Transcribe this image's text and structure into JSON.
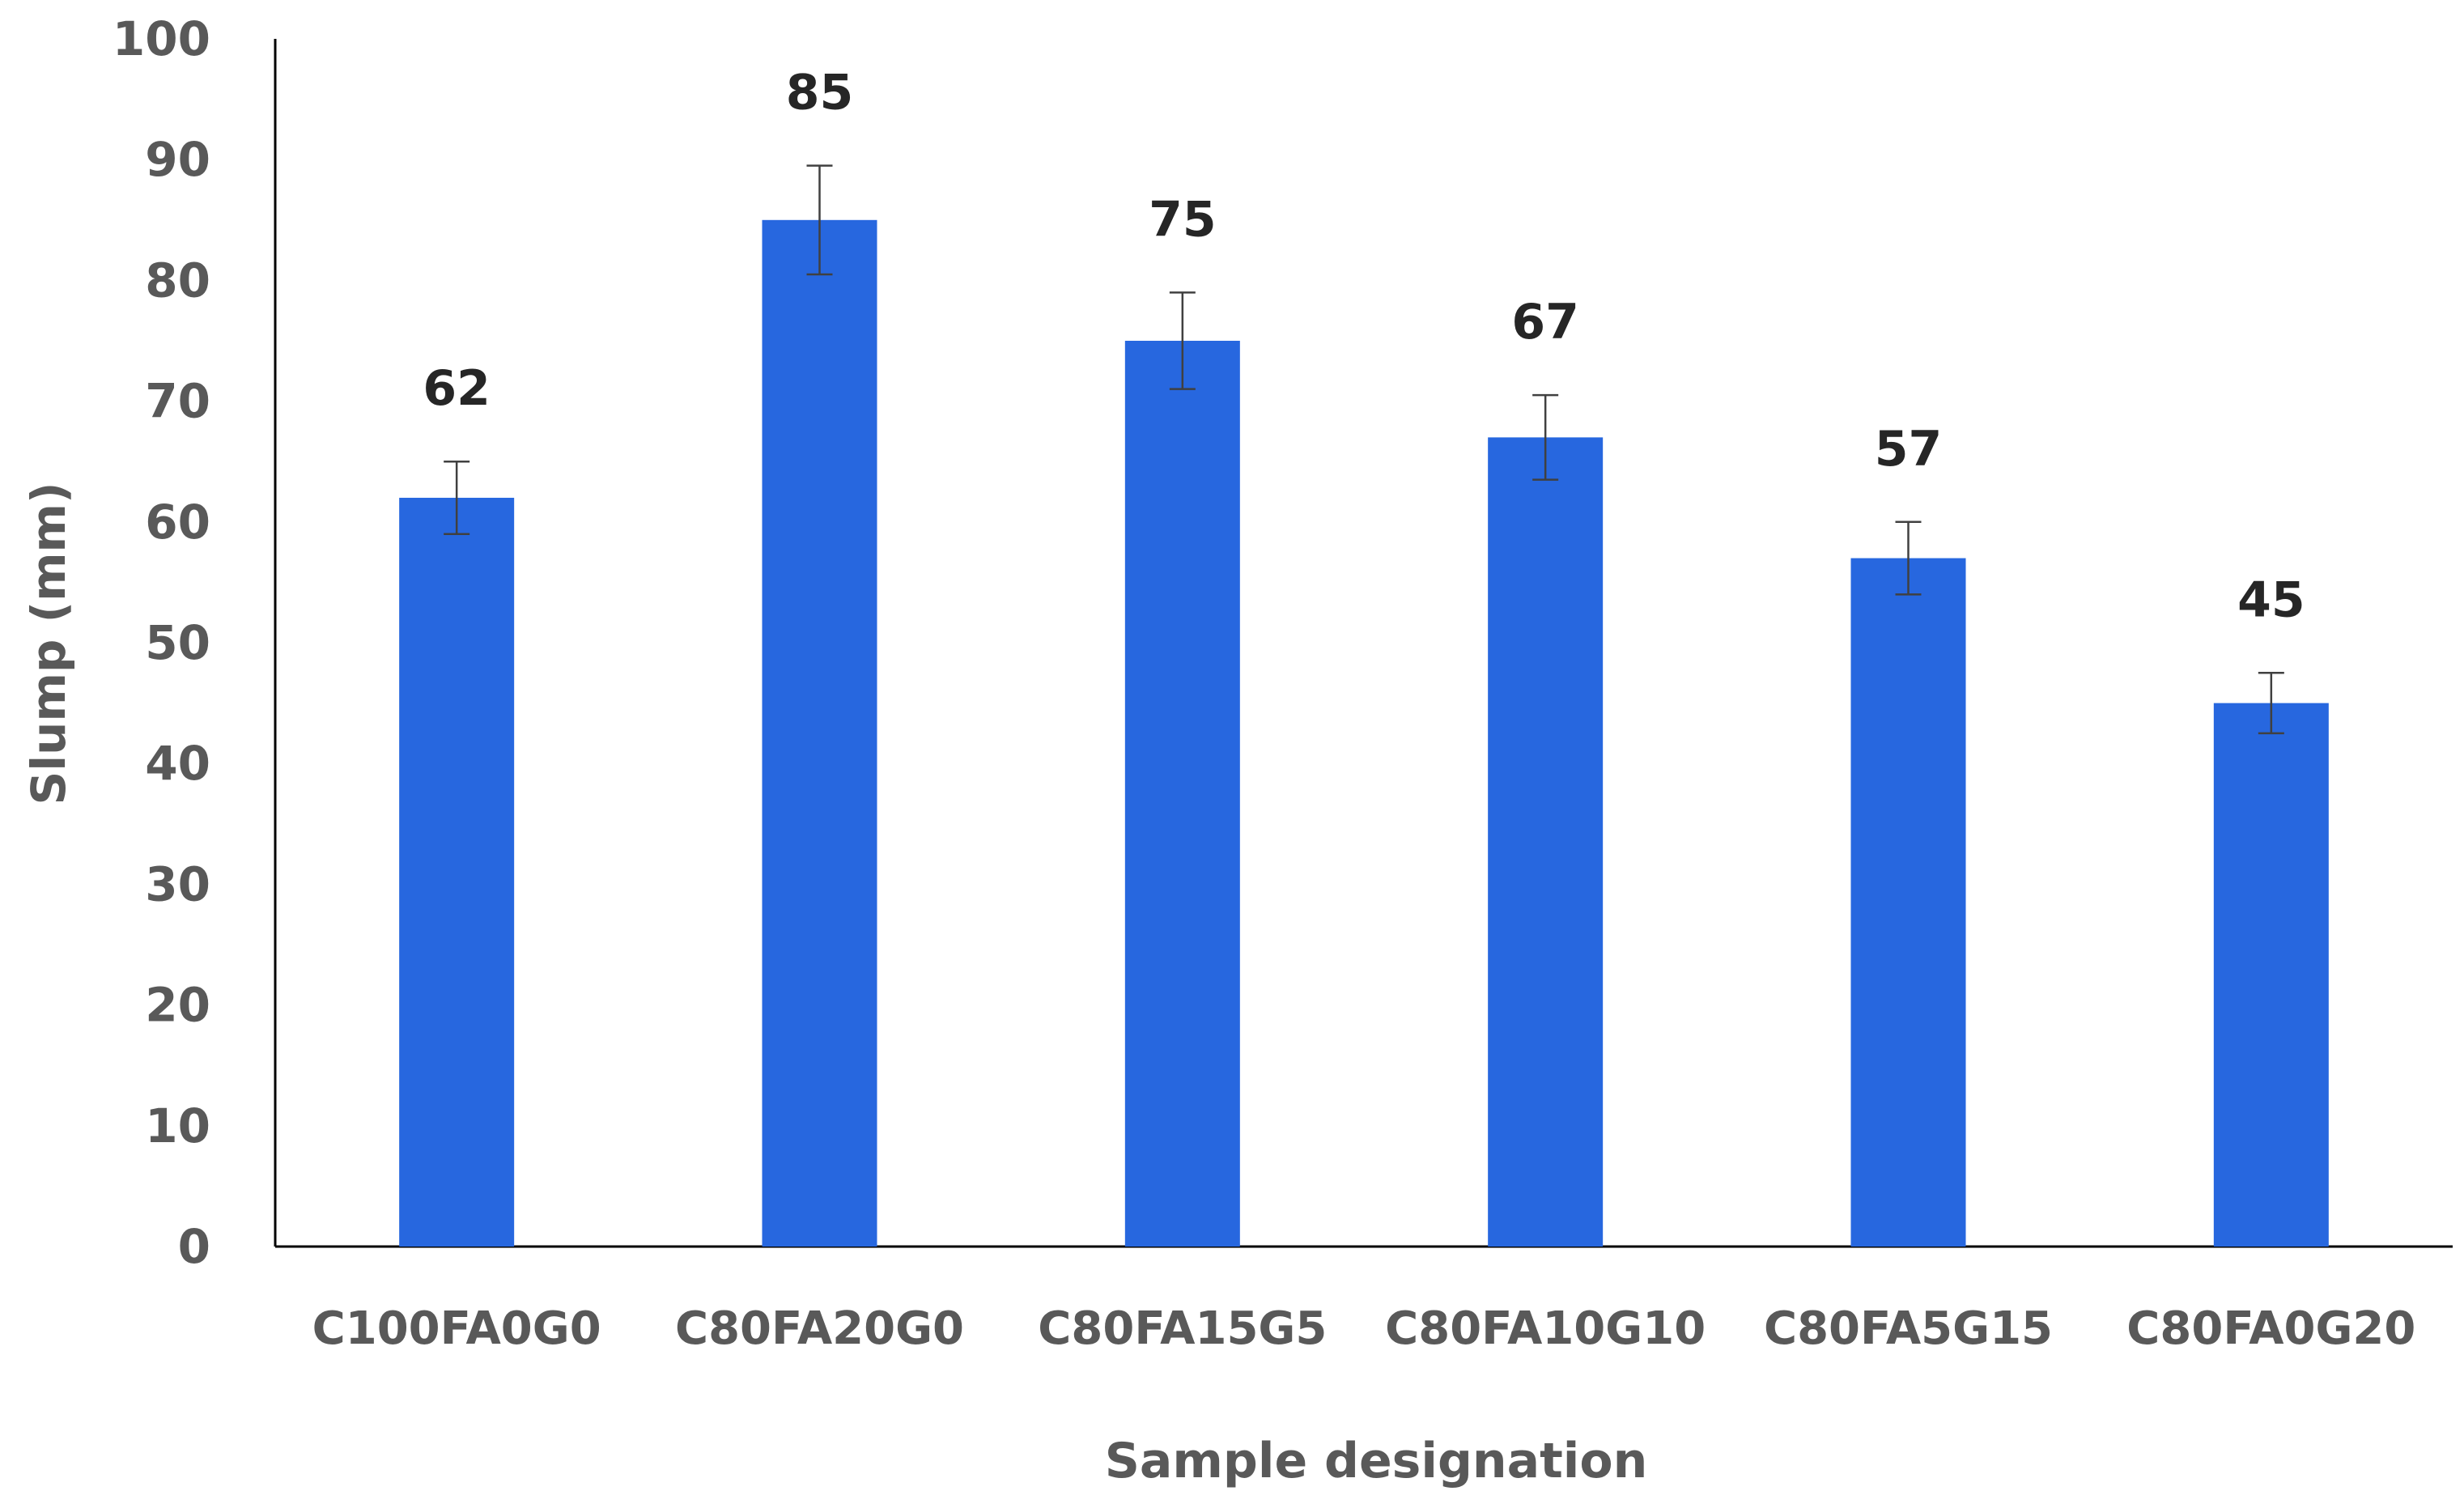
{
  "chart_data": {
    "type": "bar",
    "categories": [
      "C100FA0G0",
      "C80FA20G0",
      "C80FA15G5",
      "C80FA10G10",
      "C80FA5G15",
      "C80FA0G20"
    ],
    "values": [
      62,
      85,
      75,
      67,
      57,
      45
    ],
    "error_low": [
      59,
      80.5,
      71,
      63.5,
      54,
      42.5
    ],
    "error_high": [
      65,
      89.5,
      79,
      70.5,
      60,
      47.5
    ],
    "data_labels": [
      "62",
      "85",
      "75",
      "67",
      "57",
      "45"
    ],
    "title": "",
    "xlabel": "Sample designation",
    "ylabel": "Slump (mm)",
    "ylim": [
      0,
      100
    ],
    "yticks": [
      "0",
      "10",
      "20",
      "30",
      "40",
      "50",
      "60",
      "70",
      "80",
      "90",
      "100"
    ],
    "grid": false,
    "legend": "none",
    "bar_color": "#2767DF",
    "error_bar_color": "#404040"
  }
}
